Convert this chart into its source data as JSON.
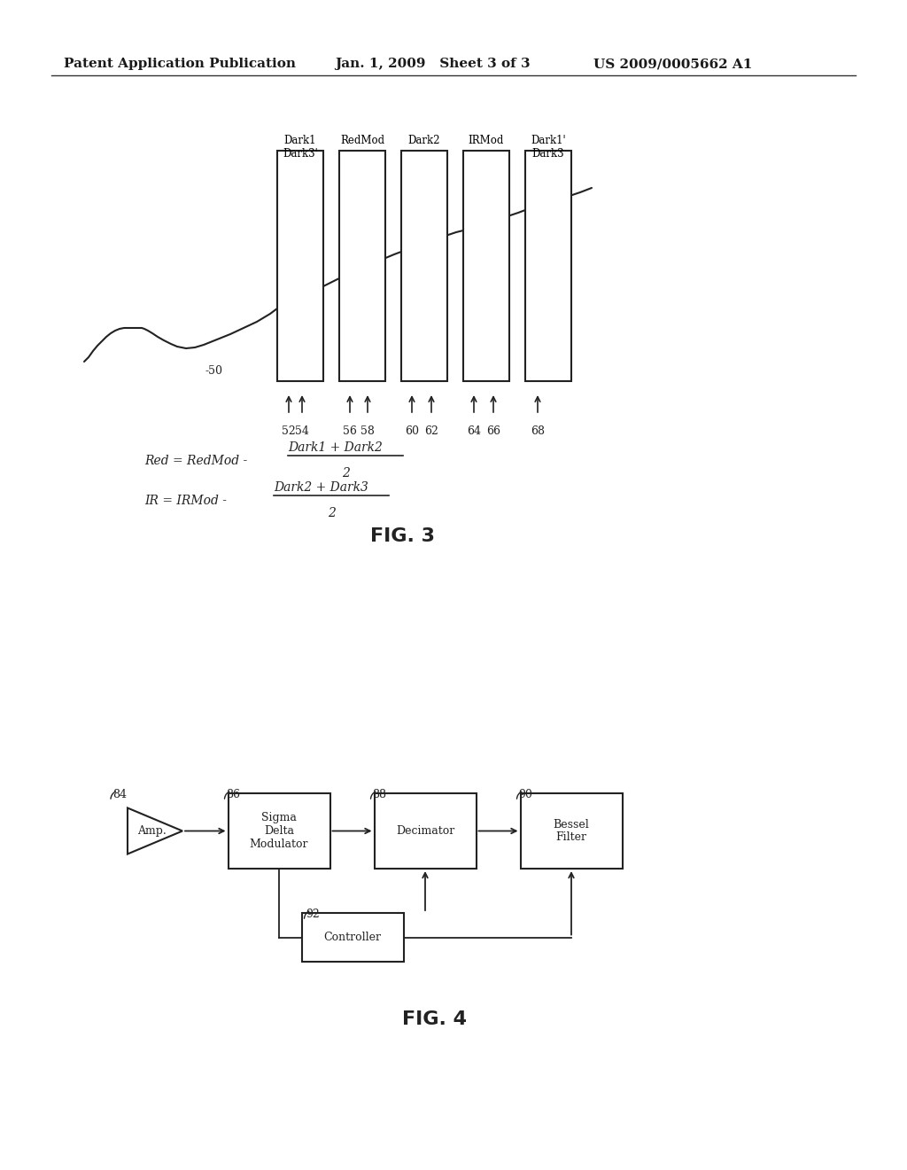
{
  "bg_color": "#ffffff",
  "header_left": "Patent Application Publication",
  "header_mid": "Jan. 1, 2009   Sheet 3 of 3",
  "header_right": "US 2009/0005662 A1",
  "fig3_title": "FIG. 3",
  "fig4_title": "FIG. 4",
  "waveform_label": "-50",
  "bar_labels_top": [
    "Dark1\nDark3'",
    "RedMod",
    "Dark2",
    "IRMod",
    "Dark1'\nDark3"
  ],
  "bar_bottom_labels": [
    "52",
    "54",
    "56",
    "58",
    "60",
    "62",
    "64",
    "66",
    "68"
  ],
  "eq1_left": "Red = RedMod -",
  "eq1_num": "Dark1 + Dark2",
  "eq1_den": "2",
  "eq2_left": "IR = IRMod -",
  "eq2_num": "Dark2 + Dark3",
  "eq2_den": "2",
  "block_labels": [
    "Amp.",
    "Sigma\nDelta\nModulator",
    "Decimator",
    "Bessel\nFilter"
  ],
  "block_ids": [
    "84",
    "86",
    "88",
    "90"
  ],
  "ctrl_label": "Controller",
  "ctrl_id": "92"
}
